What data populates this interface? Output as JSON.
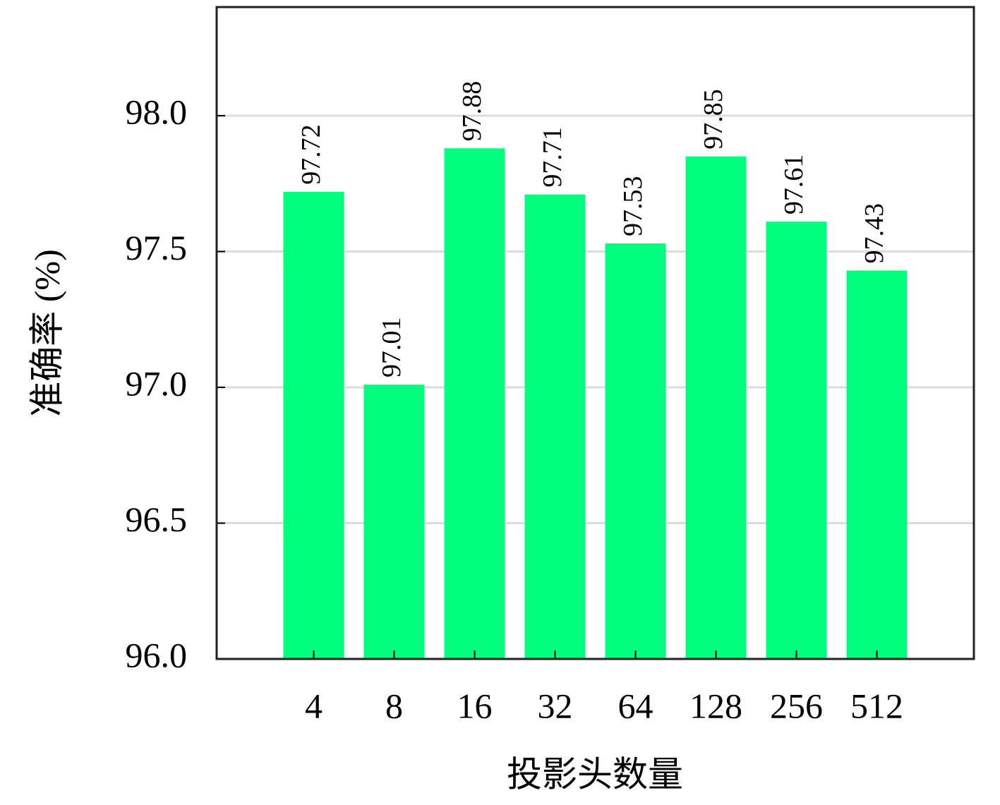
{
  "chart_data": {
    "type": "bar",
    "x_label": "投影头数量",
    "y_label": "准确率 (%)",
    "categories": [
      "4",
      "8",
      "16",
      "32",
      "64",
      "128",
      "256",
      "512"
    ],
    "values": [
      97.72,
      97.01,
      97.88,
      97.71,
      97.53,
      97.85,
      97.61,
      97.43
    ],
    "color": "#00ff7f",
    "ylim": [
      96.0,
      98.4
    ],
    "yticks": [
      {
        "value": 96.0,
        "label": "96.0"
      },
      {
        "value": 96.5,
        "label": "96.5"
      },
      {
        "value": 97.0,
        "label": "97.0"
      },
      {
        "value": 97.5,
        "label": "97.5"
      },
      {
        "value": 98.0,
        "label": "98.0"
      }
    ],
    "grid": true
  }
}
